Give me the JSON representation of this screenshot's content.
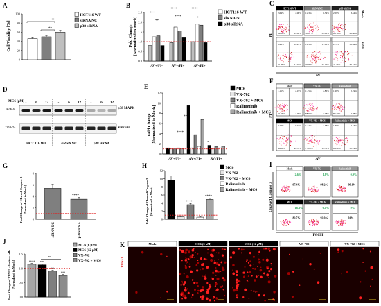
{
  "panels": {
    "A": {
      "letter": "A",
      "ylabel": "Cell Viability [%]",
      "sig": [
        "**",
        "**"
      ]
    },
    "B": {
      "letter": "B",
      "ylabel": "Fold Change",
      "ylabel2": "[Normalized to Mock]",
      "sig": [
        "***",
        "**",
        "****",
        "****",
        "****",
        "*"
      ]
    },
    "C": {
      "letter": "C",
      "cols": [
        "HCT116 WT",
        "siRNA NC",
        "p38 siRNA"
      ],
      "row_labels": [
        "Mock",
        "MC6"
      ],
      "quads": [
        [
          "2.64%",
          "4.90%",
          "69.84%",
          "24.62%"
        ],
        [
          "1.83%",
          "6.34%",
          "58.07%",
          "34.06%"
        ],
        [
          "2.59%",
          "8.44%",
          "60.14%",
          "28.80%"
        ],
        [
          "3.99%",
          "12.22%",
          "41.86%",
          "41.93%"
        ],
        [
          "1.83%",
          "11.16%",
          "39.87%",
          "47.14%"
        ],
        [
          "27.4%",
          "33.54%",
          "41.75%",
          "39.34%"
        ]
      ],
      "ylabel": "PI",
      "xlabel": "AV"
    },
    "D": {
      "letter": "D",
      "dose_label": "MC6 [μM]",
      "doses": [
        "-",
        "6",
        "12",
        "-",
        "6",
        "12",
        "-",
        "6",
        "12"
      ],
      "kda1": "40 kDa",
      "kda2": "135 kDa",
      "band1": "p38 MAPK",
      "band2": "Vinculin",
      "groups": [
        "HCT 116 WT",
        "siRNA NC",
        "p38 siRNA"
      ]
    },
    "E": {
      "letter": "E",
      "ylabel": "Fold Change",
      "ylabel2": "[Normalized to Mock]",
      "sig": [
        "****",
        "****",
        "*"
      ]
    },
    "F": {
      "letter": "F",
      "cols_top": [
        "Mock",
        "VX-702",
        "Ralimetinib"
      ],
      "cols_bottom": [
        "MC6",
        "VX-702 + MC6",
        "Ralimetinib + MC6"
      ],
      "quads": [
        [
          "1.15%",
          "2.19%",
          "91.66%",
          "4.79%"
        ],
        [
          "1.15%",
          "2.86%",
          "88.93%",
          "7.08%"
        ],
        [
          "1.28%",
          "2.19%",
          "89.47%",
          "7.08%"
        ],
        [
          "2.23%",
          "6.91%",
          "46.16%",
          "44.70%"
        ],
        [
          "1.24%",
          "2.38%",
          "77.05%",
          "19.33%"
        ],
        [
          "1.39%",
          "2.53%",
          "63.99%",
          "32.14%"
        ]
      ],
      "ylabel": "PI",
      "xlabel": "AV"
    },
    "G": {
      "letter": "G",
      "ylabel": "Fold Change of Cleaved Caspase 3",
      "ylabel2": "[Normalized to Mock]",
      "sig": "****"
    },
    "H": {
      "letter": "H",
      "ylabel": "Fold Change of Cleaved Caspase 3",
      "ylabel2": "[Normalized to Mock]",
      "sig": [
        "****",
        "****"
      ]
    },
    "I": {
      "letter": "I",
      "cols_top": [
        "Mock",
        "VX-702",
        "Ralimetinib"
      ],
      "cols_bottom": [
        "MC6",
        "VX-702 + MC6",
        "Ralimetinib + MC6"
      ],
      "green": [
        "2.6%",
        "1.8%",
        "0.9%",
        "16.3%",
        "6.1%",
        "9%"
      ],
      "black": [
        "97.4%",
        "98.2%",
        "99.1%",
        "83.7%",
        "93.9%",
        "91%"
      ],
      "ylabel": "Cleaved Caspase 3",
      "xlabel": "FSCH"
    },
    "J": {
      "letter": "J",
      "ylabel": "Fold Change of TUNEL-Positive cells",
      "ylabel2": "[Normalized to Mock]",
      "sig": [
        "****",
        "***",
        "**",
        "***"
      ]
    },
    "K": {
      "letter": "K",
      "ylabel": "TUNEL",
      "cols": [
        "Mock",
        "MC6 (6 μM)",
        "MC6 (12 μM)",
        "VX-702",
        "VX-702 + MC6"
      ]
    }
  },
  "colors": {
    "black": "#000000",
    "grey": "#7f7f7f",
    "light": "#bfbfbf",
    "white": "#ffffff",
    "red": "#e02020",
    "green": "#17a04a"
  },
  "chart_data": [
    {
      "panel": "A",
      "type": "bar",
      "categories": [
        "HCT116 WT",
        "siRNA NC",
        "p38 siRNA"
      ],
      "values": [
        46,
        50,
        60
      ],
      "errors": [
        2,
        2,
        4
      ],
      "ylim": [
        0,
        100
      ],
      "yticks": [
        0,
        20,
        40,
        60,
        80,
        100
      ],
      "ylabel": "Cell Viability [%]"
    },
    {
      "panel": "B",
      "type": "bar",
      "categories": [
        "AV+/PI-",
        "AV+/PI+",
        "AV-/PI+"
      ],
      "series": [
        {
          "name": "HCT116 WT",
          "values": [
            1.25,
            1.75,
            1.9
          ]
        },
        {
          "name": "siRNA NC",
          "values": [
            1.3,
            1.55,
            1.85
          ]
        },
        {
          "name": "p38 siRNA",
          "values": [
            0.8,
            1.2,
            0.95
          ]
        }
      ],
      "mock_values": [
        0.8,
        0.95,
        1.0
      ],
      "ylim": [
        0,
        2.5
      ],
      "yticks": [
        0.0,
        0.5,
        1.0,
        1.5,
        2.0,
        2.5
      ]
    },
    {
      "panel": "E",
      "type": "bar",
      "categories": [
        "AV+/PI-",
        "AV+/PI+",
        "AV-/PI+"
      ],
      "series": [
        {
          "name": "MC6",
          "values": [
            1.2,
            9.5,
            1.7
          ]
        },
        {
          "name": "VX-702",
          "values": [
            1.1,
            1.2,
            1.1
          ]
        },
        {
          "name": "VX-702 + MC6",
          "values": [
            1.0,
            3.8,
            1.5
          ]
        },
        {
          "name": "Ralimetinib",
          "values": [
            1.2,
            1.5,
            1.2
          ]
        },
        {
          "name": "Ralimetinib + MC6",
          "values": [
            1.1,
            6.8,
            1.5
          ]
        }
      ],
      "ylim": [
        0,
        12
      ],
      "yticks": [
        0,
        2,
        4,
        6,
        8,
        10,
        12
      ]
    },
    {
      "panel": "G",
      "type": "bar",
      "categories": [
        "siRNA NC",
        "p38 siRNA"
      ],
      "values": [
        5.4,
        3.5
      ],
      "errors": [
        0.7,
        0.3
      ],
      "ylim": [
        0,
        8
      ],
      "yticks": [
        0,
        2,
        4,
        6,
        8
      ]
    },
    {
      "panel": "H",
      "type": "bar",
      "categories": [
        "MC6",
        "VX-702",
        "VX-702 + MC6",
        "Ralimetinib",
        "Ralimetinib + MC6"
      ],
      "values": [
        9.7,
        0.6,
        3.6,
        0.5,
        4.9
      ],
      "errors": [
        1.0,
        0.1,
        0.3,
        0.1,
        0.3
      ],
      "ylim": [
        0,
        12
      ],
      "yticks": [
        0,
        2,
        4,
        6,
        8,
        10,
        12
      ]
    },
    {
      "panel": "J",
      "type": "bar",
      "categories": [
        "MC6 (6 μM)",
        "MC6 (12 μM)",
        "VX-702",
        "VX-702 + MC6"
      ],
      "values": [
        1.14,
        1.12,
        0.9,
        0.75
      ],
      "errors": [
        0.03,
        0.03,
        0.03,
        0.03
      ],
      "ylim": [
        0,
        1.5
      ],
      "yticks": [
        0.0,
        0.5,
        1.0,
        1.5
      ]
    }
  ]
}
